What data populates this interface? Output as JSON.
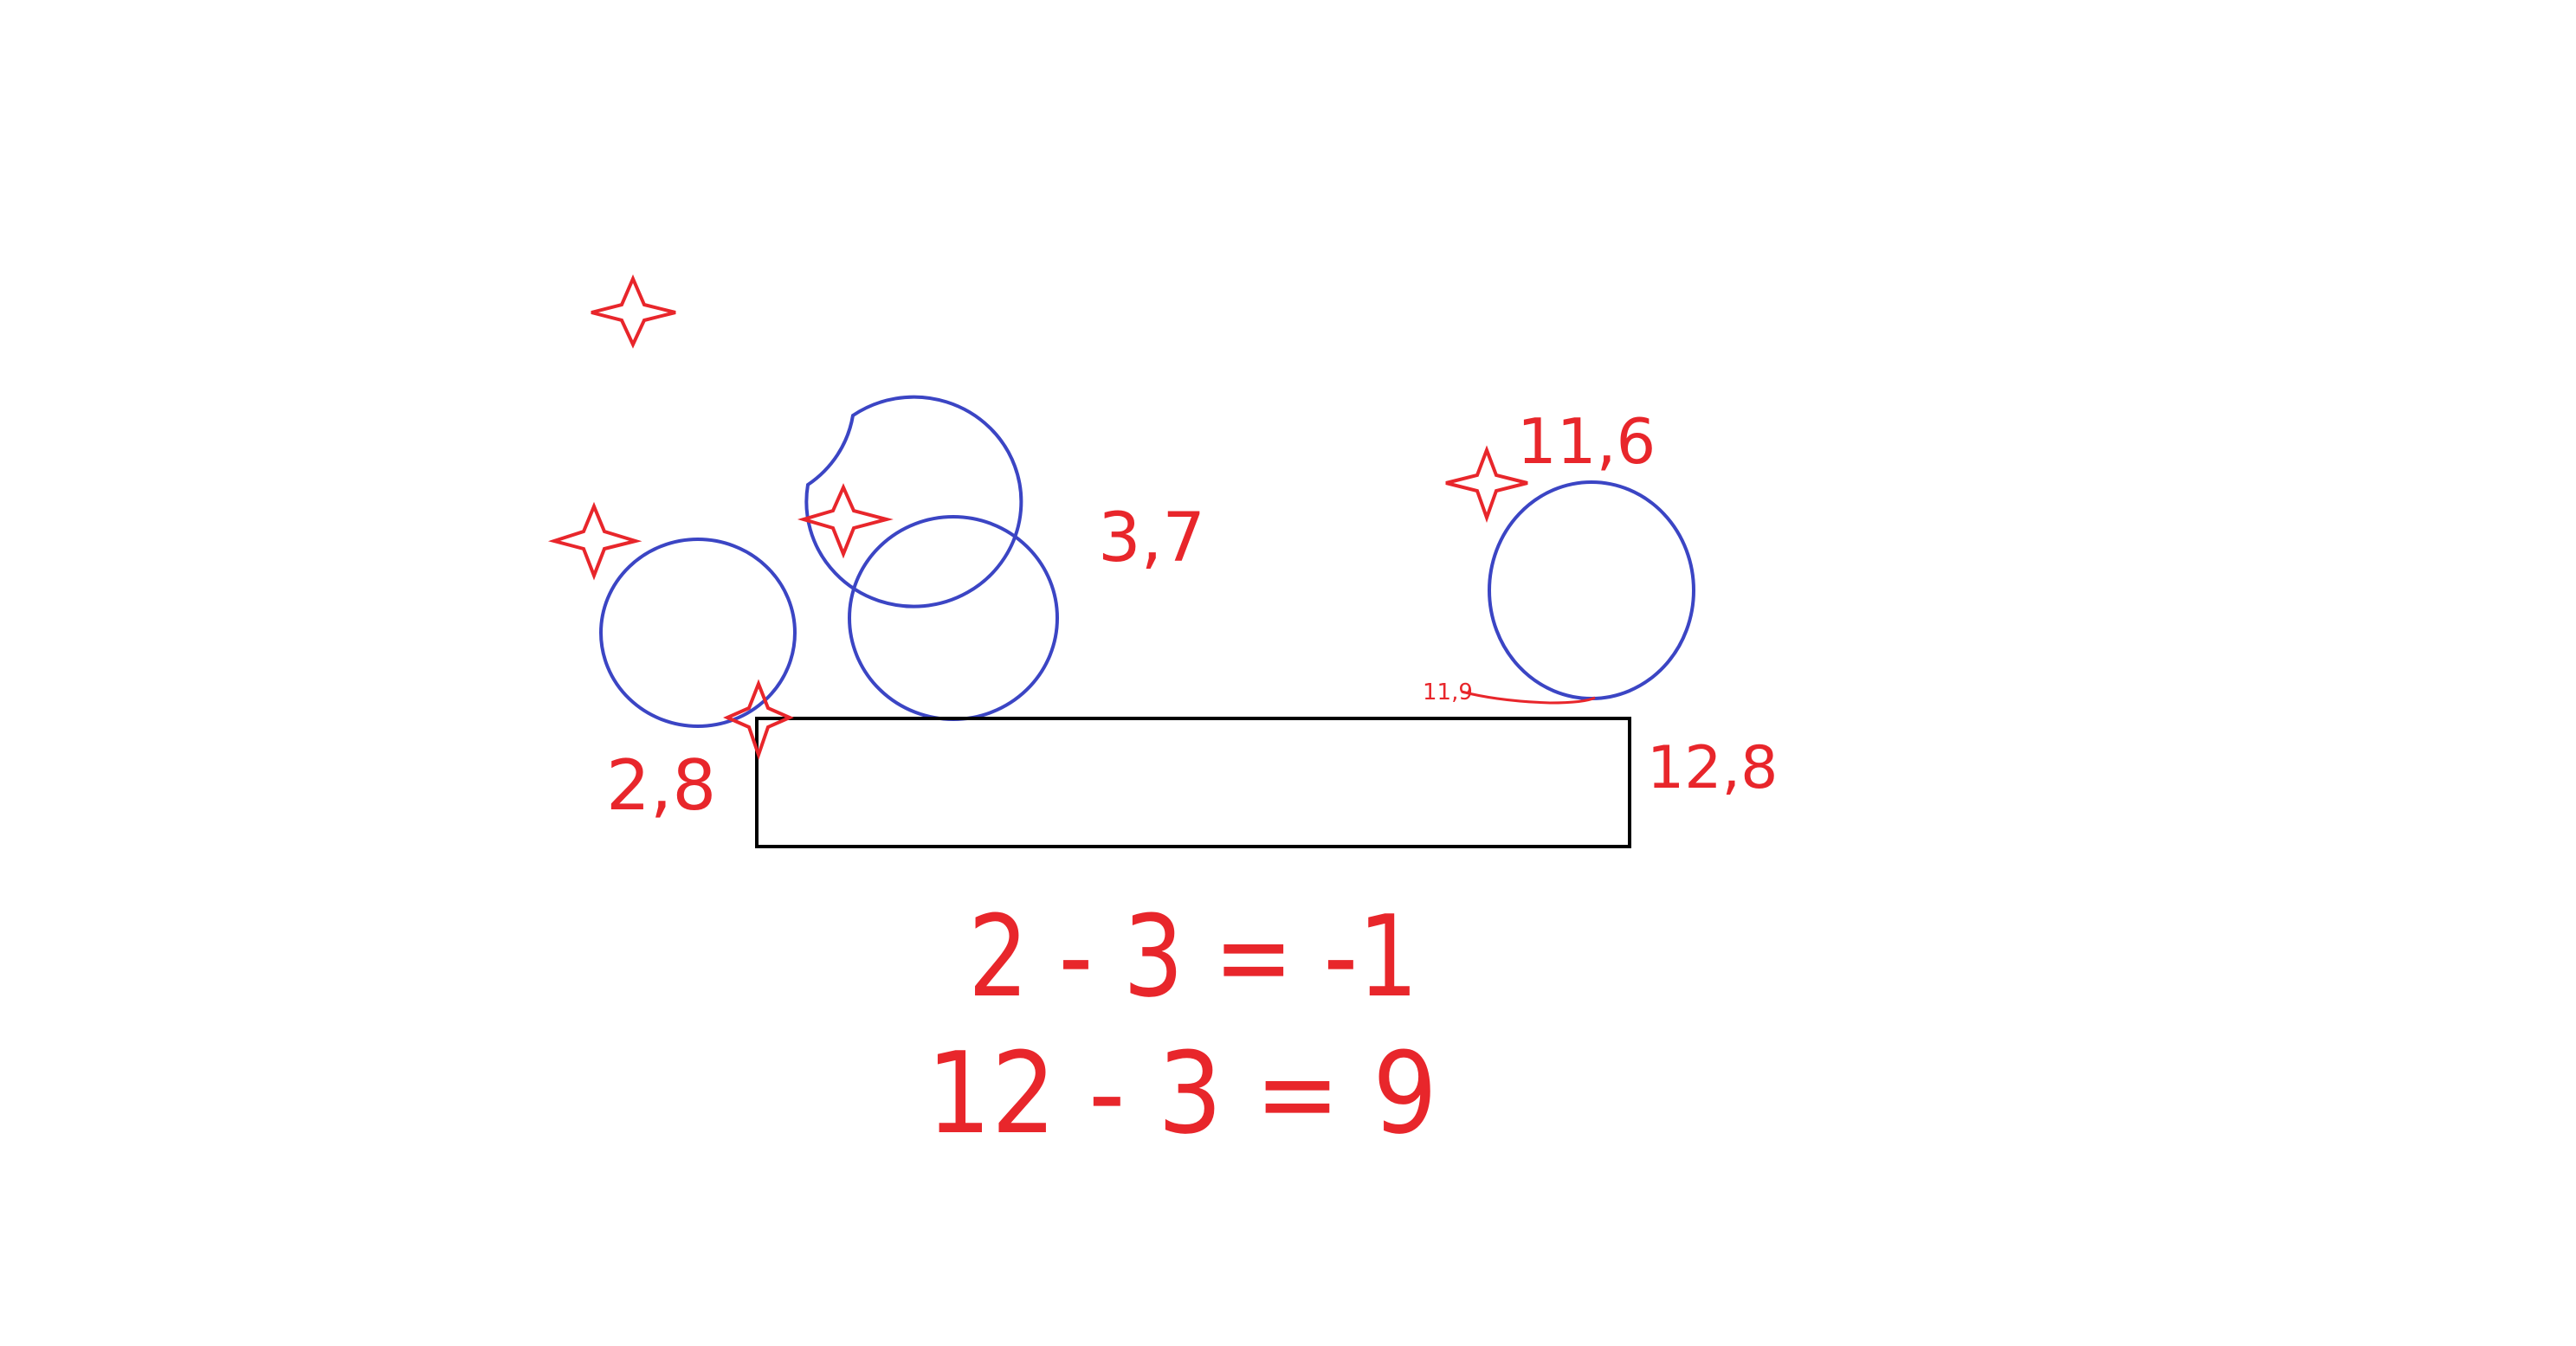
{
  "colors": {
    "background": "#ffffff",
    "circle_stroke": "#3b45c4",
    "annotation": "#e8262b",
    "board": "#000000"
  },
  "labels": {
    "top_right_circle": "11,6",
    "middle_circle": "3,7",
    "bottom_left_circle": "2,8",
    "board_right_end": "12,8",
    "small_contact_mark": "11,9"
  },
  "equations": {
    "line1": "2 - 3 = -1",
    "line2": "12 - 3 = 9"
  },
  "markers": {
    "icon": "four-point-star-icon",
    "count": 5
  }
}
